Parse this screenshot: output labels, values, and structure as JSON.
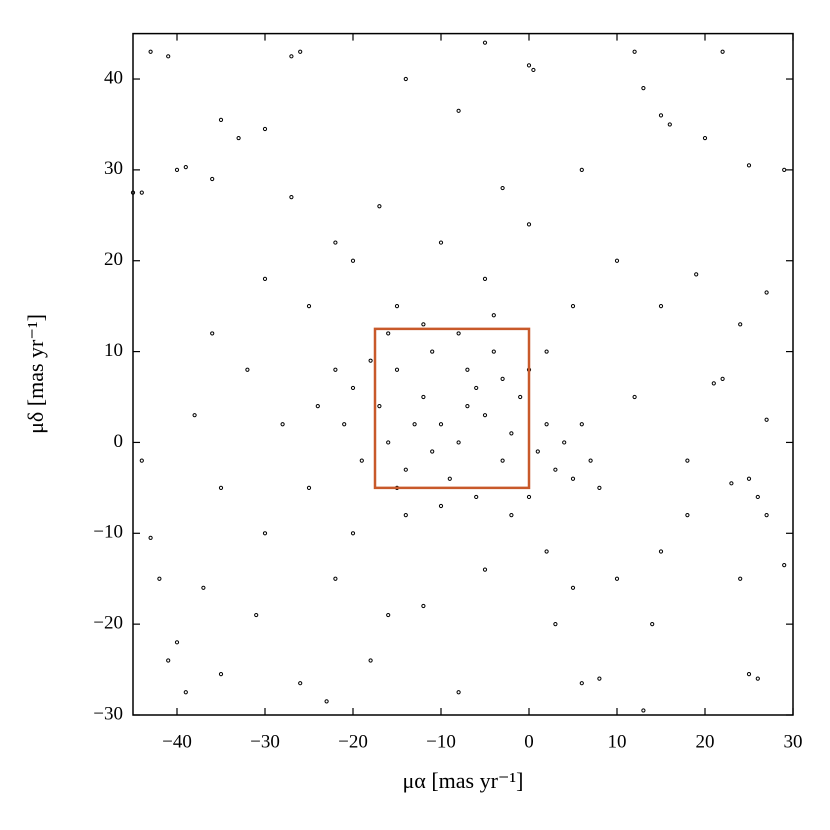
{
  "chart_data": {
    "type": "scatter",
    "xlabel": "μα [mas yr⁻¹]",
    "ylabel": "μδ [mas yr⁻¹]",
    "xlim": [
      -45,
      30
    ],
    "ylim": [
      -30,
      45
    ],
    "xticks": [
      {
        "value": -40,
        "label": "−40"
      },
      {
        "value": -30,
        "label": "−30"
      },
      {
        "value": -20,
        "label": "−20"
      },
      {
        "value": -10,
        "label": "−10"
      },
      0,
      10,
      20,
      30
    ],
    "yticks": [
      {
        "value": -30,
        "label": "−30"
      },
      {
        "value": -20,
        "label": "−20"
      },
      {
        "value": -10,
        "label": "−10"
      },
      0,
      10,
      20,
      30,
      40
    ],
    "color": "#000000",
    "x": [
      -43,
      -41,
      -27,
      -26,
      -5,
      0,
      0.5,
      12,
      22,
      -35,
      -30,
      -8,
      -14,
      13,
      15,
      16,
      29,
      25,
      -40,
      -39,
      -33,
      -36,
      -27,
      20,
      -44,
      -45,
      27,
      -44,
      -42,
      -43,
      -40,
      -41,
      -35,
      -39,
      -26,
      -23,
      -8,
      6,
      8,
      13,
      25,
      26,
      24,
      29,
      27,
      26,
      23,
      21,
      22,
      27,
      24,
      19,
      25,
      -37,
      -31,
      -18,
      -16,
      3,
      10,
      15,
      18,
      -30,
      -35,
      -38,
      -32,
      -25,
      -20,
      -10,
      0,
      10,
      15,
      12,
      8,
      -28,
      -22,
      -12,
      5,
      2,
      -5,
      -15,
      -5,
      5,
      -25,
      -30,
      -36,
      18,
      14,
      -20,
      -3,
      -17,
      6,
      -22,
      -15,
      -12,
      -10,
      -8,
      -5,
      -3,
      -1,
      -16,
      -14,
      -11,
      -7,
      -4,
      -2,
      -9,
      -13,
      -6,
      -17,
      -18,
      -20,
      -21,
      -19,
      1,
      3,
      5,
      2,
      4,
      -6,
      -10,
      -14,
      0,
      2,
      -8,
      -12,
      -4,
      -16,
      -22,
      -24,
      6,
      7,
      -2,
      0,
      -7,
      -11,
      -3,
      -15
    ],
    "y": [
      43,
      42.5,
      42.5,
      43,
      44,
      41.5,
      41,
      43,
      43,
      35.5,
      34.5,
      36.5,
      40,
      39,
      36,
      35,
      30,
      30.5,
      30,
      30.3,
      33.5,
      29,
      27,
      33.5,
      27.5,
      27.5,
      16.5,
      -2,
      -15,
      -10.5,
      -22,
      -24,
      -25.5,
      -27.5,
      -26.5,
      -28.5,
      -27.5,
      -26.5,
      -26,
      -29.5,
      -25.5,
      -26,
      -15,
      -13.5,
      -8,
      -6,
      -4.5,
      6.5,
      7,
      2.5,
      13,
      18.5,
      -4,
      -16,
      -19,
      -24,
      -19,
      -20,
      -15,
      -12,
      -8,
      -10,
      -5,
      3,
      8,
      15,
      20,
      22,
      24,
      20,
      15,
      5,
      -5,
      2,
      -15,
      -18,
      -16,
      -12,
      -14,
      15,
      18,
      15,
      -5,
      18,
      12,
      -2,
      -20,
      -10,
      28,
      26,
      30,
      22,
      8,
      5,
      2,
      0,
      3,
      -2,
      5,
      0,
      -3,
      10,
      8,
      10,
      1,
      -4,
      2,
      6,
      4,
      9,
      6,
      2,
      -2,
      -1,
      -3,
      -4,
      2,
      0,
      -6,
      -7,
      -8,
      8,
      10,
      12,
      13,
      14,
      12,
      8,
      4,
      2,
      -2,
      -8,
      -6,
      4,
      -1,
      7,
      -5
    ],
    "box": {
      "xlim": [
        -17.5,
        0
      ],
      "ylim": [
        -5,
        12.5
      ],
      "color": "#c8592a"
    }
  }
}
